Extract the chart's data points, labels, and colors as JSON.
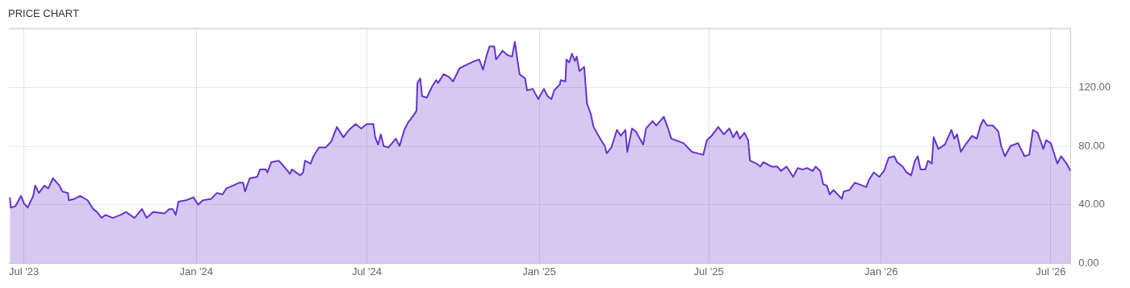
{
  "chart_data": {
    "type": "area",
    "title": "PRICE CHART",
    "xlim": [
      "2023-06-15",
      "2026-07-22"
    ],
    "xticks": [
      {
        "value": "2023-07-01",
        "label": "Jul '23"
      },
      {
        "value": "2024-01-01",
        "label": "Jan '24"
      },
      {
        "value": "2024-07-01",
        "label": "Jul '24"
      },
      {
        "value": "2025-01-01",
        "label": "Jan '25"
      },
      {
        "value": "2025-07-01",
        "label": "Jul '25"
      },
      {
        "value": "2026-01-01",
        "label": "Jan '26"
      },
      {
        "value": "2026-07-01",
        "label": "Jul '26"
      }
    ],
    "ylim": [
      0,
      160
    ],
    "yticks": [
      {
        "value": 0,
        "label": "0.00"
      },
      {
        "value": 40,
        "label": "40.00"
      },
      {
        "value": 80,
        "label": "80.00"
      },
      {
        "value": 120,
        "label": "120.00"
      }
    ],
    "grid": true,
    "legend": false,
    "x": [
      "2023-06-16",
      "2023-06-17",
      "2023-06-22",
      "2023-06-28",
      "2023-07-01",
      "2023-07-05",
      "2023-07-11",
      "2023-07-13",
      "2023-07-17",
      "2023-07-23",
      "2023-07-27",
      "2023-08-01",
      "2023-08-08",
      "2023-08-11",
      "2023-08-17",
      "2023-08-18",
      "2023-08-24",
      "2023-08-30",
      "2023-09-07",
      "2023-09-13",
      "2023-09-17",
      "2023-09-22",
      "2023-09-26",
      "2023-10-04",
      "2023-10-12",
      "2023-10-18",
      "2023-10-27",
      "2023-11-04",
      "2023-11-09",
      "2023-11-16",
      "2023-11-28",
      "2023-12-03",
      "2023-12-07",
      "2023-12-10",
      "2023-12-13",
      "2023-12-21",
      "2023-12-29",
      "2024-01-03",
      "2024-01-08",
      "2024-01-17",
      "2024-01-23",
      "2024-01-29",
      "2024-02-02",
      "2024-02-09",
      "2024-02-16",
      "2024-02-20",
      "2024-02-22",
      "2024-02-27",
      "2024-03-06",
      "2024-03-09",
      "2024-03-15",
      "2024-03-17",
      "2024-03-21",
      "2024-03-29",
      "2024-04-05",
      "2024-04-10",
      "2024-04-12",
      "2024-04-21",
      "2024-04-24",
      "2024-04-26",
      "2024-05-02",
      "2024-05-05",
      "2024-05-11",
      "2024-05-18",
      "2024-05-24",
      "2024-05-30",
      "2024-06-06",
      "2024-06-12",
      "2024-06-19",
      "2024-06-25",
      "2024-07-01",
      "2024-07-08",
      "2024-07-10",
      "2024-07-13",
      "2024-07-16",
      "2024-07-19",
      "2024-07-24",
      "2024-08-01",
      "2024-08-05",
      "2024-08-10",
      "2024-08-14",
      "2024-08-20",
      "2024-08-23",
      "2024-08-24",
      "2024-08-27",
      "2024-08-29",
      "2024-09-03",
      "2024-09-09",
      "2024-09-13",
      "2024-09-15",
      "2024-09-21",
      "2024-09-27",
      "2024-10-01",
      "2024-10-08",
      "2024-10-14",
      "2024-10-24",
      "2024-10-29",
      "2024-11-02",
      "2024-11-06",
      "2024-11-09",
      "2024-11-14",
      "2024-11-16",
      "2024-11-23",
      "2024-11-28",
      "2024-12-03",
      "2024-12-06",
      "2024-12-11",
      "2024-12-17",
      "2024-12-19",
      "2024-12-25",
      "2024-12-31",
      "2025-01-06",
      "2025-01-10",
      "2025-01-14",
      "2025-01-17",
      "2025-01-23",
      "2025-01-24",
      "2025-01-29",
      "2025-01-30",
      "2025-02-02",
      "2025-02-05",
      "2025-02-08",
      "2025-02-10",
      "2025-02-13",
      "2025-02-18",
      "2025-02-21",
      "2025-02-25",
      "2025-02-28",
      "2025-03-08",
      "2025-03-12",
      "2025-03-14",
      "2025-03-19",
      "2025-03-25",
      "2025-03-29",
      "2025-04-03",
      "2025-04-05",
      "2025-04-10",
      "2025-04-14",
      "2025-04-22",
      "2025-04-25",
      "2025-05-02",
      "2025-05-06",
      "2025-05-14",
      "2025-05-18",
      "2025-05-22",
      "2025-06-04",
      "2025-06-13",
      "2025-06-25",
      "2025-06-29",
      "2025-07-04",
      "2025-07-11",
      "2025-07-17",
      "2025-07-23",
      "2025-07-27",
      "2025-07-31",
      "2025-08-03",
      "2025-08-08",
      "2025-08-12",
      "2025-08-14",
      "2025-08-21",
      "2025-08-25",
      "2025-08-28",
      "2025-09-06",
      "2025-09-12",
      "2025-09-16",
      "2025-09-22",
      "2025-09-29",
      "2025-10-04",
      "2025-10-09",
      "2025-10-14",
      "2025-10-20",
      "2025-10-23",
      "2025-10-28",
      "2025-10-31",
      "2025-11-04",
      "2025-11-07",
      "2025-11-11",
      "2025-11-20",
      "2025-11-22",
      "2025-11-28",
      "2025-12-04",
      "2025-12-16",
      "2025-12-19",
      "2025-12-24",
      "2025-12-30",
      "2026-01-04",
      "2026-01-09",
      "2026-01-15",
      "2026-01-18",
      "2026-01-24",
      "2026-01-28",
      "2026-02-02",
      "2026-02-06",
      "2026-02-09",
      "2026-02-12",
      "2026-02-17",
      "2026-02-20",
      "2026-02-24",
      "2026-02-26",
      "2026-03-03",
      "2026-03-10",
      "2026-03-17",
      "2026-03-20",
      "2026-03-23",
      "2026-03-27",
      "2026-04-01",
      "2026-04-08",
      "2026-04-13",
      "2026-04-17",
      "2026-04-20",
      "2026-04-24",
      "2026-04-30",
      "2026-05-06",
      "2026-05-09",
      "2026-05-13",
      "2026-05-19",
      "2026-05-27",
      "2026-06-03",
      "2026-06-08",
      "2026-06-12",
      "2026-06-17",
      "2026-06-23",
      "2026-06-26",
      "2026-07-01",
      "2026-07-08",
      "2026-07-12",
      "2026-07-18",
      "2026-07-22"
    ],
    "series": [
      {
        "color": "#6633cc",
        "values": [
          45,
          38,
          39,
          46,
          41,
          38,
          46,
          53,
          48,
          53,
          51,
          58,
          53,
          49,
          48,
          43,
          44,
          46,
          43,
          37,
          35,
          31,
          33,
          31,
          33,
          35,
          31,
          37,
          31,
          35,
          34,
          37,
          37,
          33,
          42,
          43,
          45,
          40,
          43,
          44,
          48,
          47,
          51,
          53,
          55,
          55,
          49,
          58,
          59,
          64,
          64,
          62,
          69,
          70,
          65,
          61,
          64,
          60,
          62,
          70,
          68,
          73,
          79,
          79,
          83,
          93,
          86,
          91,
          95,
          92,
          95,
          95,
          86,
          81,
          88,
          80,
          79,
          85,
          80,
          91,
          96,
          101,
          104,
          123,
          126,
          114,
          113,
          121,
          125,
          123,
          129,
          127,
          124,
          133,
          135,
          138,
          139,
          132,
          142,
          148,
          148,
          139,
          145,
          142,
          141,
          151,
          129,
          126,
          118,
          119,
          112,
          119,
          114,
          112,
          118,
          122,
          125,
          124,
          139,
          137,
          143,
          138,
          141,
          131,
          134,
          109,
          102,
          93,
          84,
          80,
          75,
          79,
          91,
          87,
          91,
          76,
          92,
          90,
          81,
          92,
          97,
          94,
          100,
          93,
          85,
          82,
          76,
          74,
          84,
          87,
          93,
          88,
          92,
          86,
          90,
          85,
          89,
          84,
          70,
          68,
          66,
          69,
          66,
          66,
          63,
          66,
          59,
          65,
          64,
          65,
          63,
          66,
          63,
          54,
          53,
          47,
          50,
          44,
          49,
          50,
          55,
          52,
          57,
          62,
          59,
          63,
          72,
          73,
          69,
          66,
          62,
          60,
          70,
          73,
          64,
          64,
          70,
          68,
          86,
          78,
          81,
          91,
          85,
          88,
          76,
          81,
          87,
          85,
          94,
          98,
          94,
          94,
          90,
          80,
          73,
          80,
          82,
          73,
          74,
          91,
          89,
          78,
          84,
          82,
          68,
          73,
          68,
          63
        ]
      }
    ]
  }
}
